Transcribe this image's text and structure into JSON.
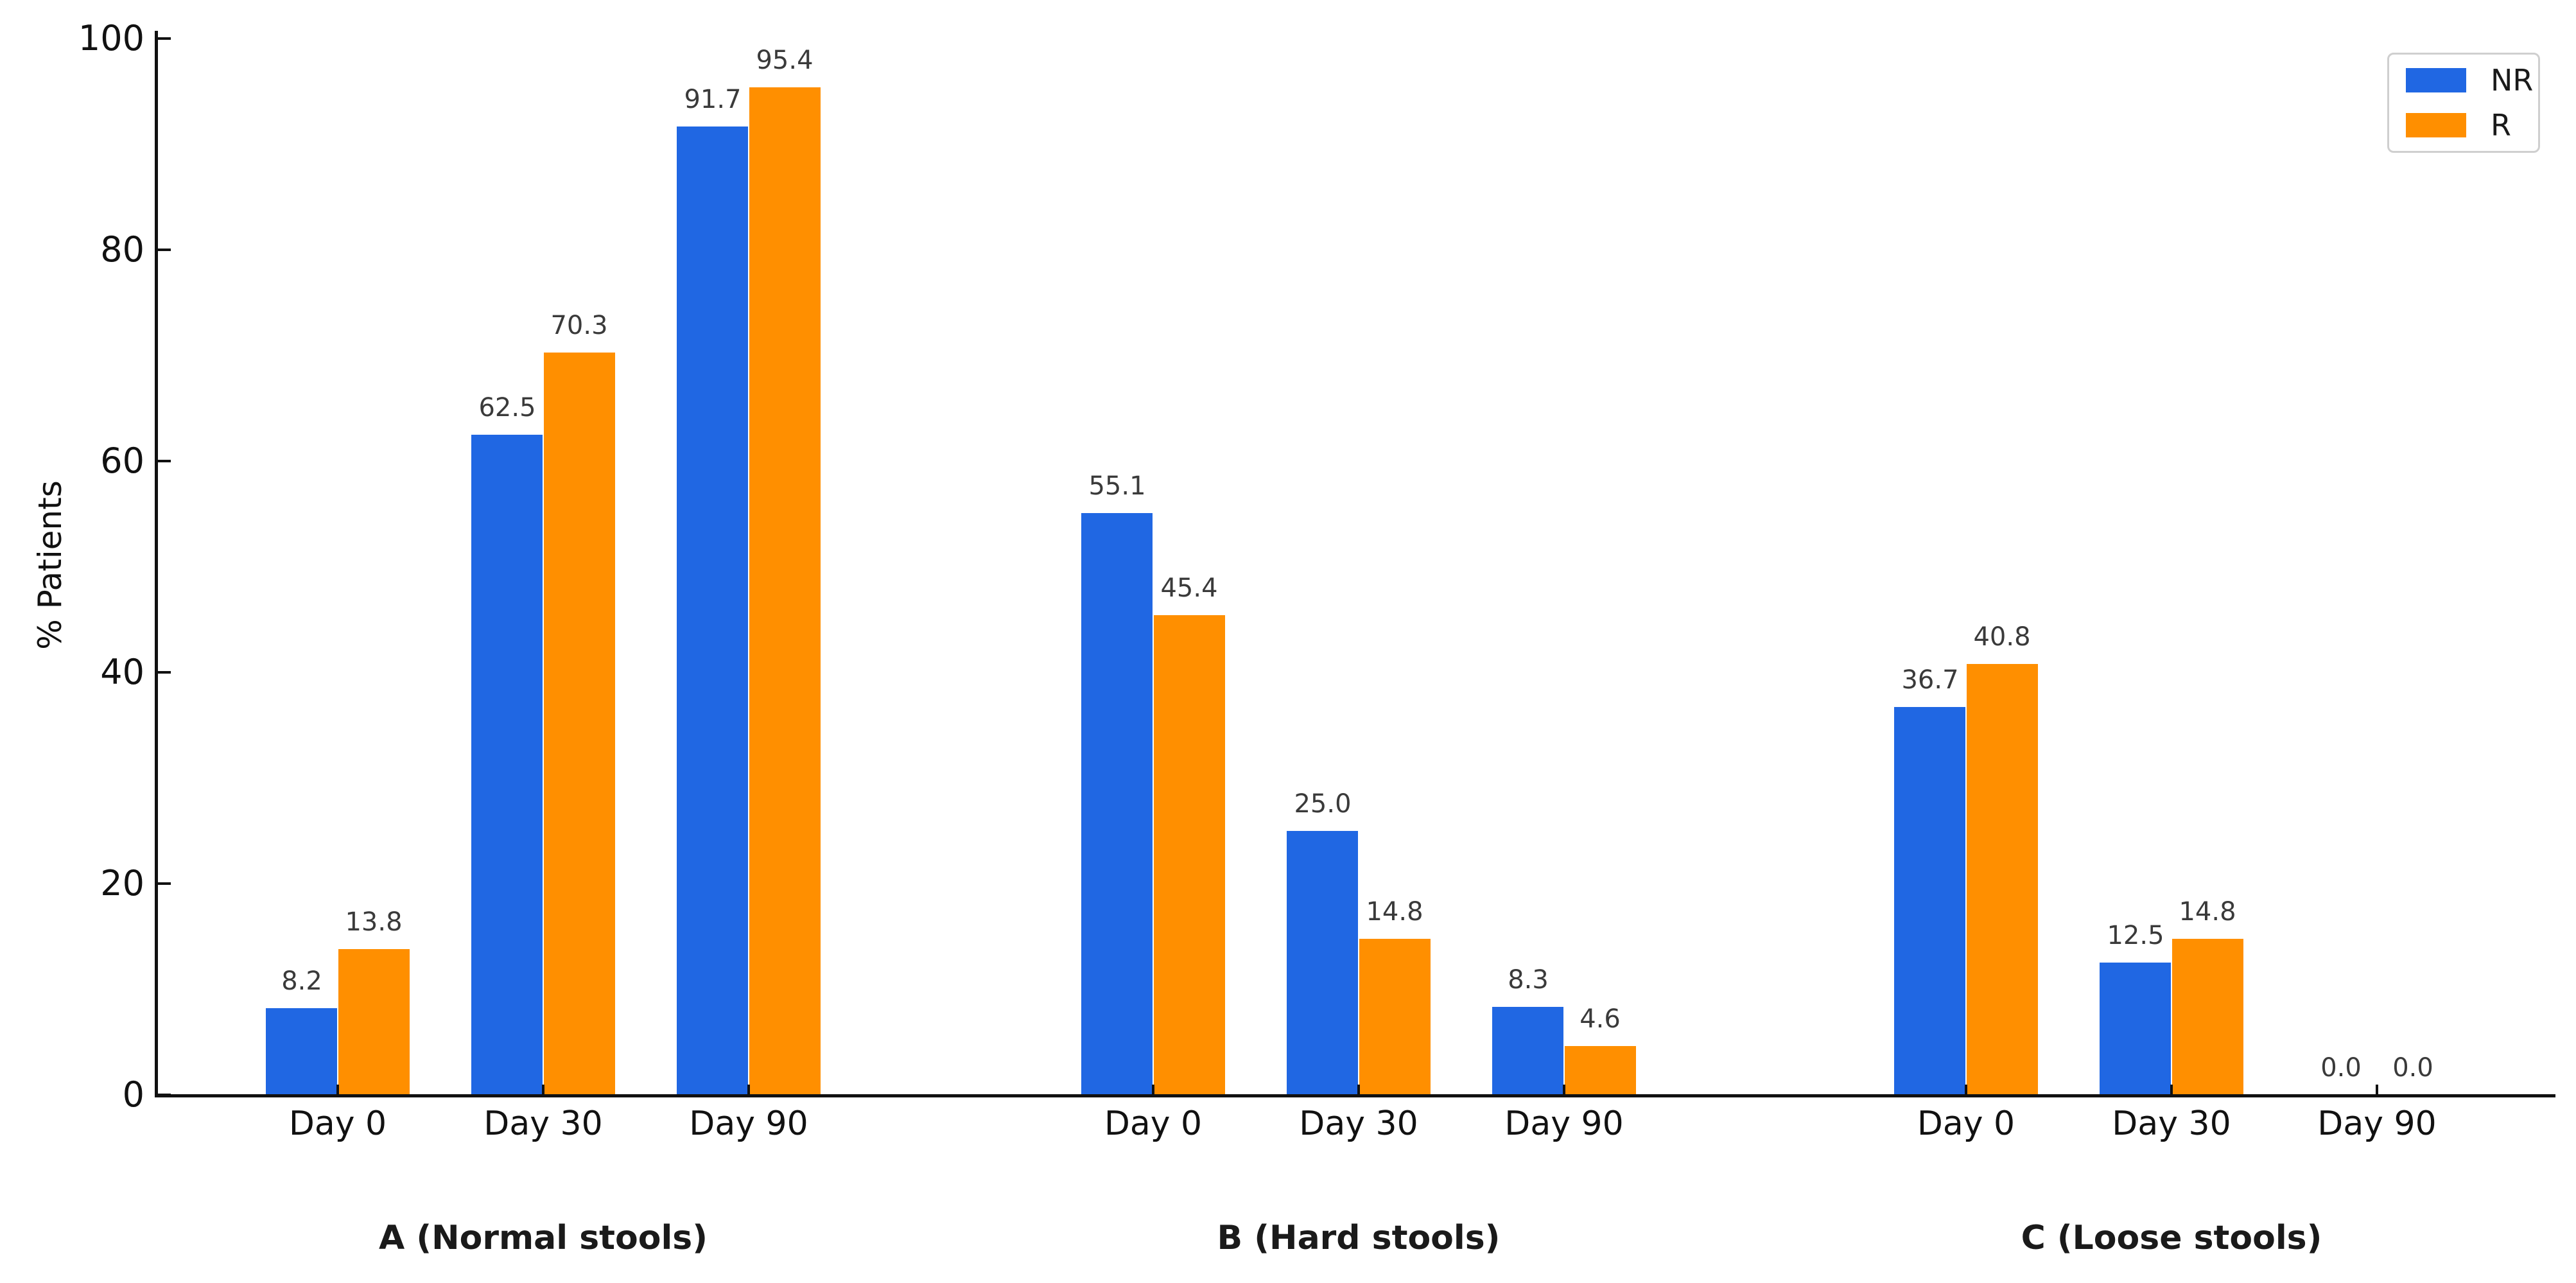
{
  "chart_data": {
    "type": "bar",
    "title": "",
    "ylabel": "% Patients",
    "xlabel": "",
    "ylim": [
      0,
      100
    ],
    "yticks": [
      0,
      20,
      40,
      60,
      80,
      100
    ],
    "grid": false,
    "legend": {
      "position": "upper right",
      "entries": [
        {
          "name": "NR",
          "color": "#2067e3"
        },
        {
          "name": "R",
          "color": "#ff8f00"
        }
      ]
    },
    "value_labels_shown": true,
    "groups": [
      {
        "title": "A (Normal stools)",
        "categories": [
          "Day 0",
          "Day 30",
          "Day 90"
        ],
        "series": [
          {
            "name": "NR",
            "values": [
              8.2,
              62.5,
              91.7
            ]
          },
          {
            "name": "R",
            "values": [
              13.8,
              70.3,
              95.4
            ]
          }
        ]
      },
      {
        "title": "B (Hard stools)",
        "categories": [
          "Day 0",
          "Day 30",
          "Day 90"
        ],
        "series": [
          {
            "name": "NR",
            "values": [
              55.1,
              25.0,
              8.3
            ]
          },
          {
            "name": "R",
            "values": [
              45.4,
              14.8,
              4.6
            ]
          }
        ]
      },
      {
        "title": "C (Loose stools)",
        "categories": [
          "Day 0",
          "Day 30",
          "Day 90"
        ],
        "series": [
          {
            "name": "NR",
            "values": [
              36.7,
              12.5,
              0.0
            ]
          },
          {
            "name": "R",
            "values": [
              40.8,
              14.8,
              0.0
            ]
          }
        ]
      }
    ]
  },
  "colors": {
    "nr": "#2067e3",
    "r": "#ff8f00",
    "axis": "#111111",
    "tick_label": "#111111",
    "value_label": "#3a3a3a",
    "legend_border": "#cfcfcf",
    "background": "#ffffff"
  }
}
